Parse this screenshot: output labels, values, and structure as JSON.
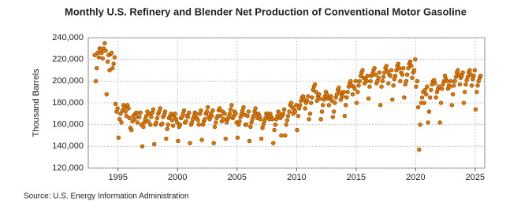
{
  "chart_data": {
    "type": "scatter",
    "title": "Monthly U.S. Refinery and Blender Net Production of Conventional Motor Gasoline",
    "y_label": "Thousand Barrels",
    "source": "Source: U.S. Energy Information Administration",
    "color": "#e07800",
    "grid": true,
    "xlim": [
      1992.5,
      2025.8
    ],
    "ylim": [
      120000,
      240000
    ],
    "xticks": [
      1995,
      2000,
      2005,
      2010,
      2015,
      2020,
      2025
    ],
    "yticks": [
      {
        "value": 120000,
        "label": "120,000"
      },
      {
        "value": 140000,
        "label": "140,000"
      },
      {
        "value": 160000,
        "label": "160,000"
      },
      {
        "value": 180000,
        "label": "180,000"
      },
      {
        "value": 200000,
        "label": "200,000"
      },
      {
        "value": 220000,
        "label": "220,000"
      },
      {
        "value": 240000,
        "label": "240,000"
      }
    ],
    "x": [
      1993.04,
      1993.13,
      1993.21,
      1993.29,
      1993.38,
      1993.46,
      1993.54,
      1993.63,
      1993.71,
      1993.79,
      1993.88,
      1993.96,
      1994.04,
      1994.13,
      1994.21,
      1994.29,
      1994.38,
      1994.46,
      1994.54,
      1994.63,
      1994.71,
      1994.79,
      1994.88,
      1994.96,
      1995.04,
      1995.13,
      1995.21,
      1995.29,
      1995.38,
      1995.46,
      1995.54,
      1995.63,
      1995.71,
      1995.79,
      1995.88,
      1995.96,
      1996.04,
      1996.13,
      1996.21,
      1996.29,
      1996.38,
      1996.46,
      1996.54,
      1996.63,
      1996.71,
      1996.79,
      1996.88,
      1996.96,
      1997.04,
      1997.13,
      1997.21,
      1997.29,
      1997.38,
      1997.46,
      1997.54,
      1997.63,
      1997.71,
      1997.79,
      1997.88,
      1997.96,
      1998.04,
      1998.13,
      1998.21,
      1998.29,
      1998.38,
      1998.46,
      1998.54,
      1998.63,
      1998.71,
      1998.79,
      1998.88,
      1998.96,
      1999.04,
      1999.13,
      1999.21,
      1999.29,
      1999.38,
      1999.46,
      1999.54,
      1999.63,
      1999.71,
      1999.79,
      1999.88,
      1999.96,
      2000.04,
      2000.13,
      2000.21,
      2000.29,
      2000.38,
      2000.46,
      2000.54,
      2000.63,
      2000.71,
      2000.79,
      2000.88,
      2000.96,
      2001.04,
      2001.13,
      2001.21,
      2001.29,
      2001.38,
      2001.46,
      2001.54,
      2001.63,
      2001.71,
      2001.79,
      2001.88,
      2001.96,
      2002.04,
      2002.13,
      2002.21,
      2002.29,
      2002.38,
      2002.46,
      2002.54,
      2002.63,
      2002.71,
      2002.79,
      2002.88,
      2002.96,
      2003.04,
      2003.13,
      2003.21,
      2003.29,
      2003.38,
      2003.46,
      2003.54,
      2003.63,
      2003.71,
      2003.79,
      2003.88,
      2003.96,
      2004.04,
      2004.13,
      2004.21,
      2004.29,
      2004.38,
      2004.46,
      2004.54,
      2004.63,
      2004.71,
      2004.79,
      2004.88,
      2004.96,
      2005.04,
      2005.13,
      2005.21,
      2005.29,
      2005.38,
      2005.46,
      2005.54,
      2005.63,
      2005.71,
      2005.79,
      2005.88,
      2005.96,
      2006.04,
      2006.13,
      2006.21,
      2006.29,
      2006.38,
      2006.46,
      2006.54,
      2006.63,
      2006.71,
      2006.79,
      2006.88,
      2006.96,
      2007.04,
      2007.13,
      2007.21,
      2007.29,
      2007.38,
      2007.46,
      2007.54,
      2007.63,
      2007.71,
      2007.79,
      2007.88,
      2007.96,
      2008.04,
      2008.13,
      2008.21,
      2008.29,
      2008.38,
      2008.46,
      2008.54,
      2008.63,
      2008.71,
      2008.79,
      2008.88,
      2008.96,
      2009.04,
      2009.13,
      2009.21,
      2009.29,
      2009.38,
      2009.46,
      2009.54,
      2009.63,
      2009.71,
      2009.79,
      2009.88,
      2009.96,
      2010.04,
      2010.13,
      2010.21,
      2010.29,
      2010.38,
      2010.46,
      2010.54,
      2010.63,
      2010.71,
      2010.79,
      2010.88,
      2010.96,
      2011.04,
      2011.13,
      2011.21,
      2011.29,
      2011.38,
      2011.46,
      2011.54,
      2011.63,
      2011.71,
      2011.79,
      2011.88,
      2011.96,
      2012.04,
      2012.13,
      2012.21,
      2012.29,
      2012.38,
      2012.46,
      2012.54,
      2012.63,
      2012.71,
      2012.79,
      2012.88,
      2012.96,
      2013.04,
      2013.13,
      2013.21,
      2013.29,
      2013.38,
      2013.46,
      2013.54,
      2013.63,
      2013.71,
      2013.79,
      2013.88,
      2013.96,
      2014.04,
      2014.13,
      2014.21,
      2014.29,
      2014.38,
      2014.46,
      2014.54,
      2014.63,
      2014.71,
      2014.79,
      2014.88,
      2014.96,
      2015.04,
      2015.13,
      2015.21,
      2015.29,
      2015.38,
      2015.46,
      2015.54,
      2015.63,
      2015.71,
      2015.79,
      2015.88,
      2015.96,
      2016.04,
      2016.13,
      2016.21,
      2016.29,
      2016.38,
      2016.46,
      2016.54,
      2016.63,
      2016.71,
      2016.79,
      2016.88,
      2016.96,
      2017.04,
      2017.13,
      2017.21,
      2017.29,
      2017.38,
      2017.46,
      2017.54,
      2017.63,
      2017.71,
      2017.79,
      2017.88,
      2017.96,
      2018.04,
      2018.13,
      2018.21,
      2018.29,
      2018.38,
      2018.46,
      2018.54,
      2018.63,
      2018.71,
      2018.79,
      2018.88,
      2018.96,
      2019.04,
      2019.13,
      2019.21,
      2019.29,
      2019.38,
      2019.46,
      2019.54,
      2019.63,
      2019.71,
      2019.79,
      2019.88,
      2019.96,
      2020.04,
      2020.13,
      2020.21,
      2020.29,
      2020.38,
      2020.46,
      2020.54,
      2020.63,
      2020.71,
      2020.79,
      2020.88,
      2020.96,
      2021.04,
      2021.13,
      2021.21,
      2021.29,
      2021.38,
      2021.46,
      2021.54,
      2021.63,
      2021.71,
      2021.79,
      2021.88,
      2021.96,
      2022.04,
      2022.13,
      2022.21,
      2022.29,
      2022.38,
      2022.46,
      2022.54,
      2022.63,
      2022.71,
      2022.79,
      2022.88,
      2022.96,
      2023.04,
      2023.13,
      2023.21,
      2023.29,
      2023.38,
      2023.46,
      2023.54,
      2023.63,
      2023.71,
      2023.79,
      2023.88,
      2023.96,
      2024.04,
      2024.13,
      2024.21,
      2024.29,
      2024.38,
      2024.46,
      2024.54,
      2024.63,
      2024.71,
      2024.79,
      2024.88,
      2024.96,
      2025.04,
      2025.13,
      2025.21,
      2025.29,
      2025.38,
      2025.46
    ],
    "values": [
      224000,
      200000,
      212000,
      226000,
      222000,
      230000,
      229000,
      226000,
      221000,
      230000,
      235000,
      228000,
      188000,
      218000,
      224000,
      210000,
      225000,
      226000,
      212000,
      216000,
      222000,
      179000,
      172000,
      175000,
      148000,
      165000,
      170000,
      162000,
      173000,
      178000,
      176000,
      172000,
      168000,
      178000,
      175000,
      166000,
      157000,
      155000,
      163000,
      168000,
      165000,
      170000,
      171000,
      162000,
      167000,
      167000,
      171000,
      160000,
      140000,
      158000,
      162000,
      165000,
      168000,
      172000,
      163000,
      170000,
      160000,
      167000,
      171000,
      174000,
      142000,
      160000,
      162000,
      166000,
      170000,
      172000,
      175000,
      160000,
      161000,
      167000,
      169000,
      172000,
      147000,
      156000,
      160000,
      166000,
      168000,
      170000,
      164000,
      159000,
      168000,
      170000,
      165000,
      162000,
      145000,
      158000,
      160000,
      166000,
      167000,
      170000,
      173000,
      162000,
      163000,
      168000,
      167000,
      171000,
      143000,
      160000,
      162000,
      165000,
      168000,
      171000,
      170000,
      166000,
      164000,
      160000,
      170000,
      173000,
      146000,
      160000,
      163000,
      165000,
      170000,
      172000,
      176000,
      167000,
      165000,
      170000,
      168000,
      173000,
      143000,
      158000,
      162000,
      166000,
      168000,
      173000,
      175000,
      168000,
      163000,
      172000,
      165000,
      170000,
      147000,
      162000,
      165000,
      167000,
      170000,
      174000,
      178000,
      166000,
      168000,
      172000,
      170000,
      162000,
      148000,
      160000,
      163000,
      167000,
      170000,
      173000,
      176000,
      169000,
      160000,
      160000,
      168000,
      172000,
      145000,
      158000,
      162000,
      165000,
      168000,
      172000,
      175000,
      170000,
      166000,
      170000,
      168000,
      165000,
      147000,
      157000,
      160000,
      163000,
      166000,
      170000,
      170000,
      168000,
      165000,
      170000,
      167000,
      165000,
      143000,
      155000,
      160000,
      165000,
      168000,
      172000,
      170000,
      166000,
      150000,
      168000,
      170000,
      174000,
      150000,
      160000,
      164000,
      168000,
      172000,
      178000,
      180000,
      176000,
      170000,
      174000,
      172000,
      178000,
      155000,
      168000,
      175000,
      178000,
      182000,
      185000,
      186000,
      183000,
      175000,
      180000,
      182000,
      186000,
      165000,
      170000,
      180000,
      185000,
      192000,
      195000,
      197000,
      190000,
      182000,
      186000,
      188000,
      184000,
      165000,
      172000,
      178000,
      183000,
      186000,
      190000,
      188000,
      184000,
      178000,
      185000,
      186000,
      182000,
      167000,
      172000,
      180000,
      185000,
      188000,
      192000,
      194000,
      190000,
      183000,
      187000,
      186000,
      190000,
      168000,
      178000,
      185000,
      190000,
      195000,
      198000,
      200000,
      196000,
      188000,
      195000,
      193000,
      200000,
      180000,
      190000,
      196000,
      200000,
      205000,
      208000,
      210000,
      203000,
      198000,
      202000,
      200000,
      205000,
      184000,
      195000,
      200000,
      205000,
      207000,
      210000,
      212000,
      206000,
      198000,
      200000,
      203000,
      208000,
      178000,
      195000,
      200000,
      204000,
      208000,
      212000,
      214000,
      209000,
      198000,
      206000,
      205000,
      210000,
      183000,
      196000,
      202000,
      205000,
      210000,
      214000,
      216000,
      212000,
      200000,
      208000,
      206000,
      212000,
      185000,
      197000,
      200000,
      206000,
      212000,
      216000,
      218000,
      214000,
      203000,
      208000,
      210000,
      220000,
      195000,
      200000,
      176000,
      137000,
      160000,
      180000,
      185000,
      190000,
      180000,
      192000,
      188000,
      195000,
      162000,
      172000,
      185000,
      192000,
      197000,
      200000,
      201000,
      198000,
      185000,
      190000,
      193000,
      195000,
      162000,
      180000,
      193000,
      197000,
      200000,
      205000,
      202000,
      200000,
      193000,
      196000,
      195000,
      200000,
      178000,
      188000,
      196000,
      200000,
      204000,
      208000,
      210000,
      206000,
      197000,
      203000,
      205000,
      208000,
      180000,
      190000,
      197000,
      201000,
      204000,
      208000,
      210000,
      206000,
      196000,
      202000,
      205000,
      210000,
      174000,
      190000,
      196000,
      200000,
      203000,
      205000
    ]
  }
}
